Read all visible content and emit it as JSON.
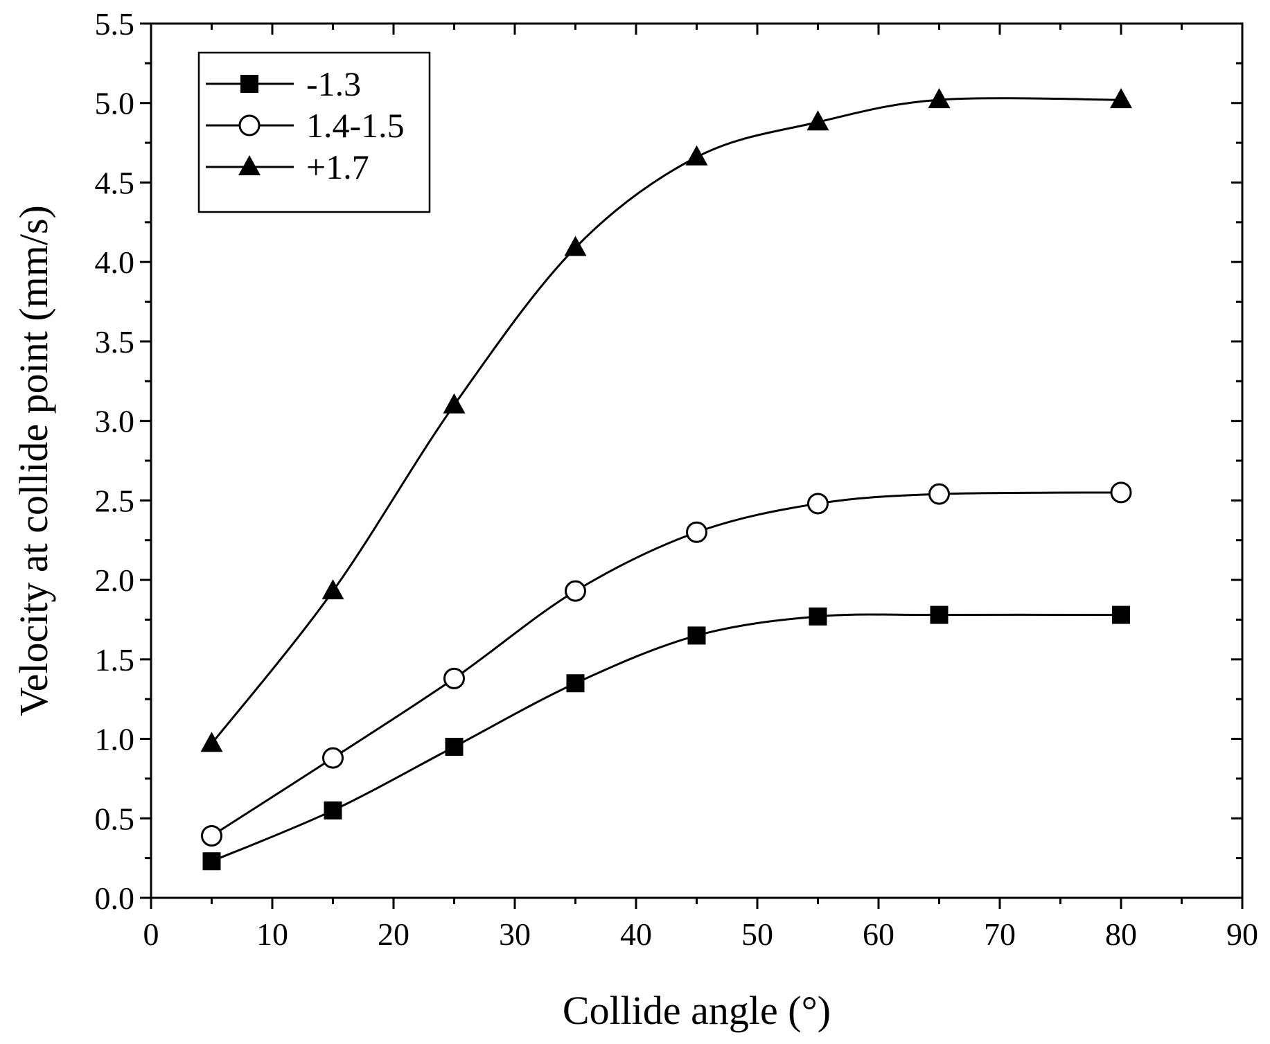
{
  "chart_data": {
    "type": "line",
    "xlabel": "Collide angle (°)",
    "ylabel": "Velocity at collide point (mm/s)",
    "xlim": [
      0,
      90
    ],
    "ylim": [
      0.0,
      5.5
    ],
    "xticks": [
      0,
      10,
      20,
      30,
      40,
      50,
      60,
      70,
      80,
      90
    ],
    "xtick_labels": [
      "0",
      "10",
      "20",
      "30",
      "40",
      "50",
      "60",
      "70",
      "80",
      "90"
    ],
    "yticks": [
      0.0,
      0.5,
      1.0,
      1.5,
      2.0,
      2.5,
      3.0,
      3.5,
      4.0,
      4.5,
      5.0,
      5.5
    ],
    "ytick_labels": [
      "0.0",
      "0.5",
      "1.0",
      "1.5",
      "2.0",
      "2.5",
      "3.0",
      "3.5",
      "4.0",
      "4.5",
      "5.0",
      "5.5"
    ],
    "grid": false,
    "legend_position": "top-left",
    "line_color": "#000000",
    "x": [
      5,
      15,
      25,
      35,
      45,
      55,
      65,
      80
    ],
    "series": [
      {
        "name": "-1.3",
        "marker": "filled-square",
        "values": [
          0.23,
          0.55,
          0.95,
          1.35,
          1.65,
          1.77,
          1.78,
          1.78
        ]
      },
      {
        "name": "1.4-1.5",
        "marker": "open-circle",
        "values": [
          0.39,
          0.88,
          1.38,
          1.93,
          2.3,
          2.48,
          2.54,
          2.55
        ]
      },
      {
        "name": "+1.7",
        "marker": "filled-triangle",
        "values": [
          0.97,
          1.93,
          3.1,
          4.09,
          4.66,
          4.88,
          5.02,
          5.02
        ]
      }
    ]
  }
}
